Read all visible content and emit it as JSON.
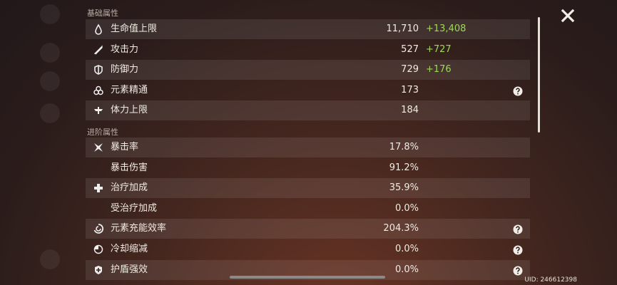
{
  "sections": [
    {
      "title": "基础属性",
      "rows": [
        {
          "label": "生命值上限",
          "value": "11,710",
          "bonus": "+13,408"
        },
        {
          "label": "攻击力",
          "value": "527",
          "bonus": "+727"
        },
        {
          "label": "防御力",
          "value": "729",
          "bonus": "+176"
        },
        {
          "label": "元素精通",
          "value": "173"
        },
        {
          "label": "体力上限",
          "value": "184"
        }
      ]
    },
    {
      "title": "进阶属性",
      "rows": [
        {
          "label": "暴击率",
          "value": "17.8%"
        },
        {
          "label": "暴击伤害",
          "value": "91.2%"
        },
        {
          "label": "治疗加成",
          "value": "35.9%"
        },
        {
          "label": "受治疗加成",
          "value": "0.0%"
        },
        {
          "label": "元素充能效率",
          "value": "204.3%"
        },
        {
          "label": "冷却缩减",
          "value": "0.0%"
        },
        {
          "label": "护盾强效",
          "value": "0.0%"
        }
      ]
    }
  ],
  "uid": "UID: 246612398"
}
